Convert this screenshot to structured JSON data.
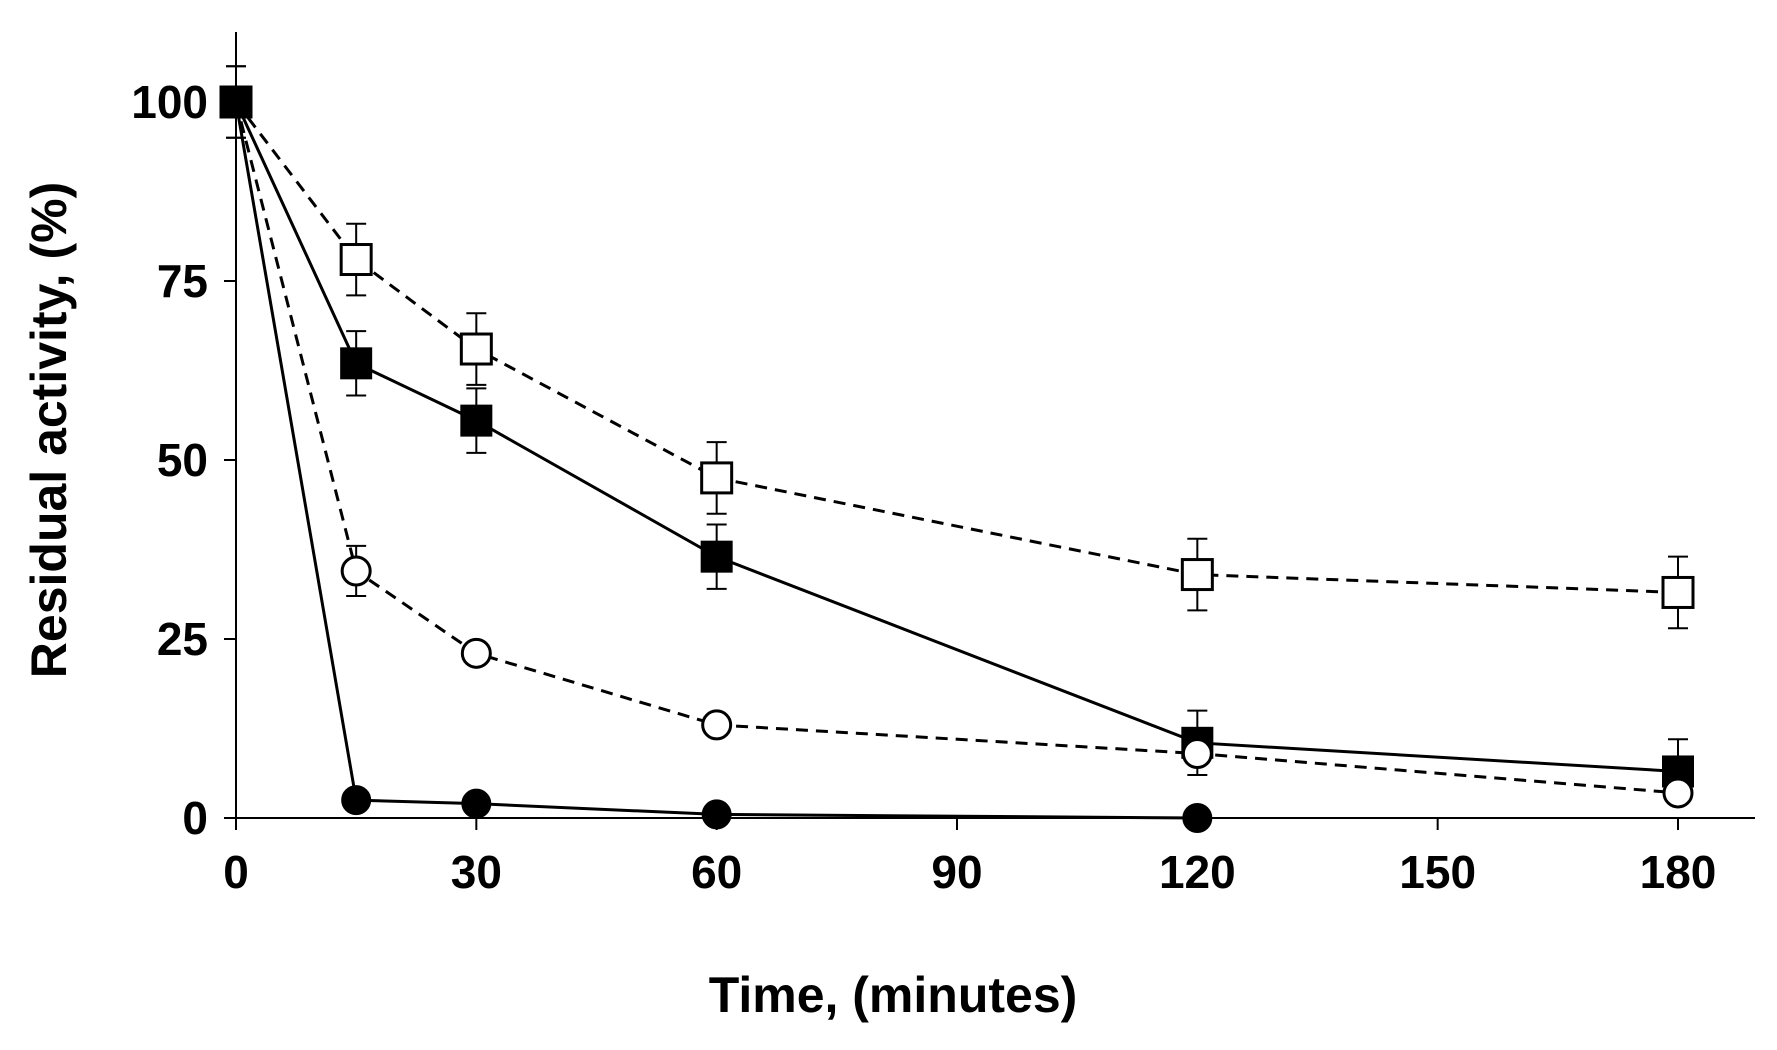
{
  "chart_data": {
    "type": "line",
    "title": "",
    "xlabel": "Time, (minutes)",
    "ylabel": "Residual activity, (%)",
    "xlim": [
      0,
      185
    ],
    "ylim": [
      0,
      110
    ],
    "xticks": [
      0,
      30,
      60,
      90,
      120,
      150,
      180
    ],
    "yticks": [
      0,
      25,
      50,
      75,
      100
    ],
    "x_tick_labels": [
      "0",
      "30",
      "60",
      "90",
      "120",
      "150",
      "180"
    ],
    "y_tick_labels": [
      "0",
      "25",
      "50",
      "75",
      "100"
    ],
    "grid": false,
    "legend": "none",
    "series": [
      {
        "name": "open-squares-dashed",
        "marker": "square-open",
        "line": "dashed",
        "x": [
          0,
          15,
          30,
          60,
          120,
          180
        ],
        "y": [
          100,
          78,
          65.5,
          47.5,
          34,
          31.5
        ],
        "err": [
          5,
          5,
          5,
          5,
          5,
          5
        ]
      },
      {
        "name": "filled-squares-solid",
        "marker": "square-filled",
        "line": "solid",
        "x": [
          0,
          15,
          30,
          60,
          120,
          180
        ],
        "y": [
          100,
          63.5,
          55.5,
          36.5,
          10.5,
          6.5
        ],
        "err": [
          5,
          4.5,
          4.5,
          4.5,
          4.5,
          4.5
        ]
      },
      {
        "name": "open-circles-dashed",
        "marker": "circle-open",
        "line": "dashed",
        "x": [
          0,
          15,
          30,
          60,
          120,
          180
        ],
        "y": [
          100,
          34.5,
          23,
          13,
          9,
          3.5
        ],
        "err": [
          0,
          3.5,
          1.5,
          1,
          1.5,
          0.5
        ]
      },
      {
        "name": "filled-circles-solid",
        "marker": "circle-filled",
        "line": "solid",
        "x": [
          0,
          15,
          30,
          60,
          120
        ],
        "y": [
          100,
          2.5,
          2,
          0.5,
          0
        ],
        "err": [
          0,
          0,
          0,
          0,
          0
        ]
      }
    ]
  }
}
